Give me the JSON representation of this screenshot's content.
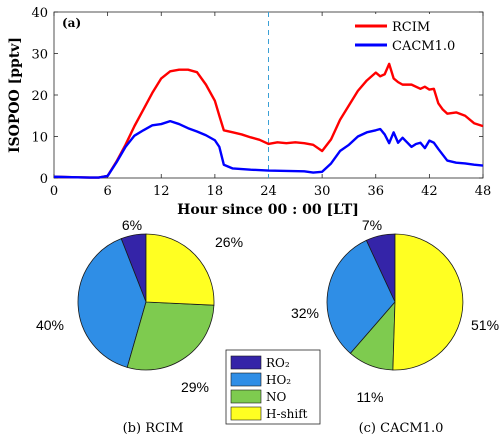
{
  "chart_data": [
    {
      "type": "line",
      "panel_label": "(a)",
      "xlabel": "Hour since 00 : 00 [LT]",
      "ylabel": "ISOPOO [pptv]",
      "xlim": [
        0,
        48
      ],
      "ylim": [
        0,
        40
      ],
      "xticks": [
        "0",
        "6",
        "12",
        "18",
        "24",
        "30",
        "36",
        "42",
        "48"
      ],
      "yticks": [
        "0",
        "10",
        "20",
        "30",
        "40"
      ],
      "grid": false,
      "legend_position": "top-right",
      "vline_x": 24,
      "series": [
        {
          "name": "RCIM",
          "color": "#ff0000",
          "x": [
            0,
            2,
            4,
            5,
            6,
            7,
            8,
            9,
            10,
            11,
            12,
            13,
            14,
            15,
            16,
            17,
            18,
            18.5,
            19,
            20,
            21,
            22,
            23,
            24,
            25,
            26,
            27,
            28,
            29,
            30,
            31,
            32,
            33,
            34,
            35,
            36,
            36.5,
            37,
            37.5,
            38,
            38.5,
            39,
            40,
            41,
            41.5,
            42,
            42.5,
            43,
            43.5,
            44,
            45,
            46,
            47,
            48
          ],
          "values": [
            0.3,
            0.2,
            0.1,
            0.1,
            0.5,
            4,
            8,
            12.5,
            16.5,
            20.5,
            24,
            25.7,
            26.1,
            26.1,
            25.5,
            22.5,
            18.6,
            15,
            11.5,
            11,
            10.5,
            9.8,
            9.2,
            8.2,
            8.6,
            8.4,
            8.6,
            8.4,
            8,
            6.5,
            9.3,
            14,
            17.5,
            21,
            23.5,
            25.4,
            24.5,
            25,
            27.5,
            24,
            23.1,
            22.5,
            22.5,
            21.5,
            22,
            21.3,
            21.5,
            18,
            16.5,
            15.5,
            15.8,
            15,
            13.2,
            12.5
          ]
        },
        {
          "name": "CACM1.0",
          "color": "#0000ff",
          "x": [
            0,
            2,
            4,
            5,
            6,
            7,
            8,
            9,
            10,
            11,
            12,
            13,
            14,
            15,
            16,
            17,
            18,
            18.5,
            19,
            20,
            22,
            24,
            26,
            28,
            29,
            30,
            31,
            32,
            33,
            34,
            35,
            36,
            36.5,
            37,
            37.5,
            38,
            38.5,
            39,
            39.5,
            40,
            40.5,
            41,
            41.5,
            42,
            42.5,
            43,
            44,
            45,
            46,
            47,
            48
          ],
          "values": [
            0.3,
            0.2,
            0.1,
            0.1,
            0.5,
            3.8,
            7.5,
            10.2,
            11.5,
            12.7,
            13,
            13.7,
            13,
            12,
            11.2,
            10.3,
            9.1,
            7.5,
            3.2,
            2.3,
            2,
            1.8,
            1.7,
            1.6,
            1.3,
            1.5,
            3.5,
            6.5,
            8,
            10,
            11,
            11.5,
            11.8,
            10.5,
            8.4,
            11,
            8.5,
            9.7,
            8.6,
            7.5,
            8.2,
            8.5,
            7.2,
            9,
            8.5,
            7,
            4.2,
            3.7,
            3.5,
            3.2,
            3
          ]
        }
      ]
    },
    {
      "type": "pie",
      "label": "(b) RCIM",
      "categories": [
        "RO₂",
        "HO₂",
        "NO",
        "H-shift"
      ],
      "values": [
        6,
        40,
        29,
        26
      ],
      "value_labels": [
        "6%",
        "40%",
        "29%",
        "26%"
      ],
      "colors": [
        "#3424a8",
        "#2f8ee6",
        "#7ecb4f",
        "#ffff22"
      ]
    },
    {
      "type": "pie",
      "label": "(c) CACM1.0",
      "categories": [
        "RO₂",
        "HO₂",
        "NO",
        "H-shift"
      ],
      "values": [
        7,
        32,
        11,
        51
      ],
      "value_labels": [
        "7%",
        "32%",
        "11%",
        "51%"
      ],
      "colors": [
        "#3424a8",
        "#2f8ee6",
        "#7ecb4f",
        "#ffff22"
      ]
    }
  ],
  "legend_pie": {
    "items": [
      {
        "label": "RO₂",
        "color": "#3424a8"
      },
      {
        "label": "HO₂",
        "color": "#2f8ee6"
      },
      {
        "label": "NO",
        "color": "#7ecb4f"
      },
      {
        "label": "H-shift",
        "color": "#ffff22"
      }
    ]
  }
}
